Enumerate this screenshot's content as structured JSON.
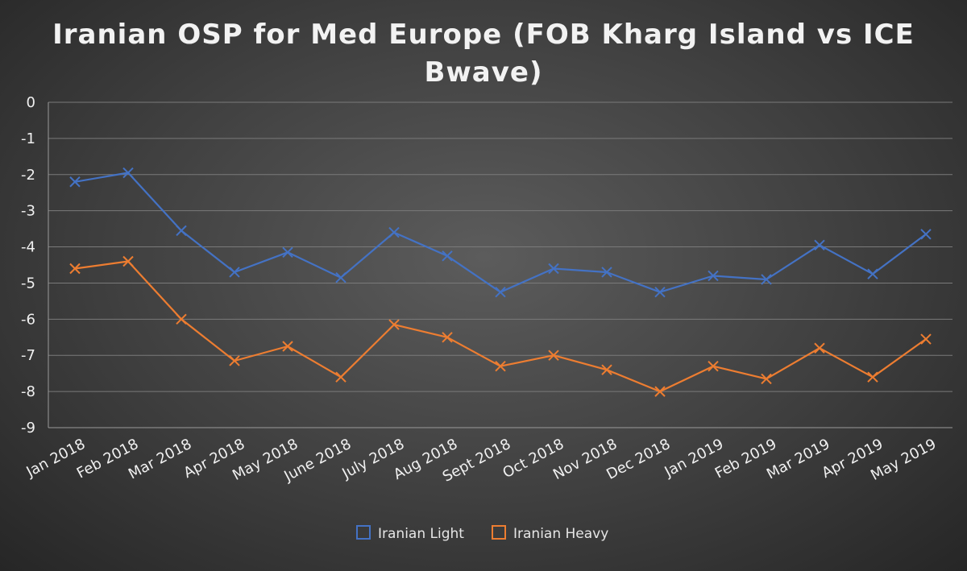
{
  "chart_data": {
    "type": "line",
    "title_lines": [
      "Iranian OSP for Med Europe (FOB Kharg Island vs ICE",
      "Bwave)"
    ],
    "xlabel": "",
    "ylabel": "",
    "categories": [
      "Jan 2018",
      "Feb 2018",
      "Mar 2018",
      "Apr 2018",
      "May 2018",
      "June 2018",
      "July 2018",
      "Aug 2018",
      "Sept 2018",
      "Oct 2018",
      "Nov 2018",
      "Dec 2018",
      "Jan 2019",
      "Feb 2019",
      "Mar 2019",
      "Apr 2019",
      "May 2019"
    ],
    "ylim": [
      -9,
      0
    ],
    "yticks": [
      0,
      -1,
      -2,
      -3,
      -4,
      -5,
      -6,
      -7,
      -8,
      -9
    ],
    "grid": true,
    "legend_position": "bottom",
    "marker": "x",
    "series": [
      {
        "name": "Iranian Light",
        "color": "#4472c4",
        "values": [
          -2.2,
          -1.95,
          -3.55,
          -4.7,
          -4.15,
          -4.85,
          -3.6,
          -4.25,
          -5.25,
          -4.6,
          -4.7,
          -5.25,
          -4.8,
          -4.9,
          -3.95,
          -4.75,
          -3.65
        ]
      },
      {
        "name": "Iranian Heavy",
        "color": "#ed7d31",
        "values": [
          -4.6,
          -4.4,
          -6.0,
          -7.15,
          -6.75,
          -7.6,
          -6.15,
          -6.5,
          -7.3,
          -7.0,
          -7.4,
          -8.0,
          -7.3,
          -7.65,
          -6.8,
          -7.6,
          -6.55
        ]
      }
    ]
  }
}
